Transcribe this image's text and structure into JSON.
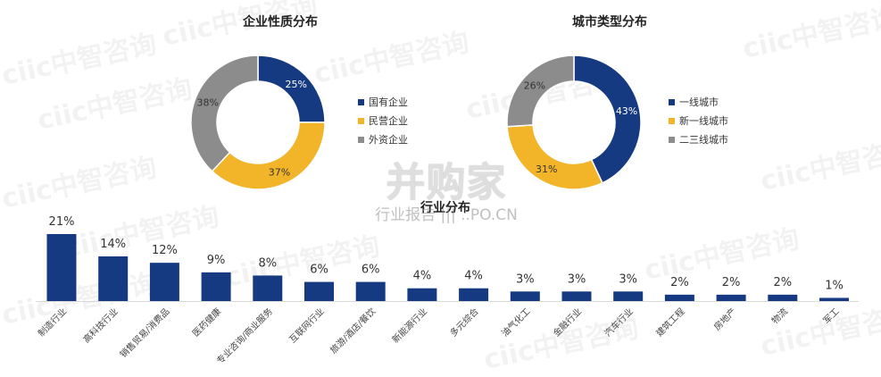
{
  "watermarks": {
    "repeat": "ciic中智咨询",
    "center_main": "并购家",
    "center_sub": "行业报告 ||| ..PO.CN"
  },
  "colors": {
    "navy": "#163a82",
    "gold": "#f2b52a",
    "gray": "#8c8c8c"
  },
  "chart_data": [
    {
      "type": "pie",
      "title": "企业性质分布",
      "donut": true,
      "legend_position": "right",
      "slices": [
        {
          "name": "国有企业",
          "value": 25,
          "label": "25%",
          "color": "#163a82"
        },
        {
          "name": "民营企业",
          "value": 37,
          "label": "37%",
          "color": "#f2b52a"
        },
        {
          "name": "外资企业",
          "value": 38,
          "label": "38%",
          "color": "#8c8c8c"
        }
      ]
    },
    {
      "type": "pie",
      "title": "城市类型分布",
      "donut": true,
      "legend_position": "right",
      "slices": [
        {
          "name": "一线城市",
          "value": 43,
          "label": "43%",
          "color": "#163a82"
        },
        {
          "name": "新一线城市",
          "value": 31,
          "label": "31%",
          "color": "#f2b52a"
        },
        {
          "name": "二三线城市",
          "value": 26,
          "label": "26%",
          "color": "#8c8c8c"
        }
      ]
    },
    {
      "type": "bar",
      "title": "行业分布",
      "ylim": [
        0,
        22
      ],
      "grid": false,
      "color": "#163a82",
      "categories": [
        "制造行业",
        "高科技行业",
        "销售贸易/消费品",
        "医药健康",
        "专业咨询/商业服务",
        "互联网行业",
        "旅游/酒店/餐饮",
        "新能源行业",
        "多元综合",
        "油气化工",
        "金融行业",
        "汽车行业",
        "建筑工程",
        "房地产",
        "物流",
        "军工"
      ],
      "values": [
        21,
        14,
        12,
        9,
        8,
        6,
        6,
        4,
        4,
        3,
        3,
        3,
        2,
        2,
        2,
        1
      ],
      "labels": [
        "21%",
        "14%",
        "12%",
        "9%",
        "8%",
        "6%",
        "6%",
        "4%",
        "4%",
        "3%",
        "3%",
        "3%",
        "2%",
        "2%",
        "2%",
        "1%"
      ]
    }
  ]
}
